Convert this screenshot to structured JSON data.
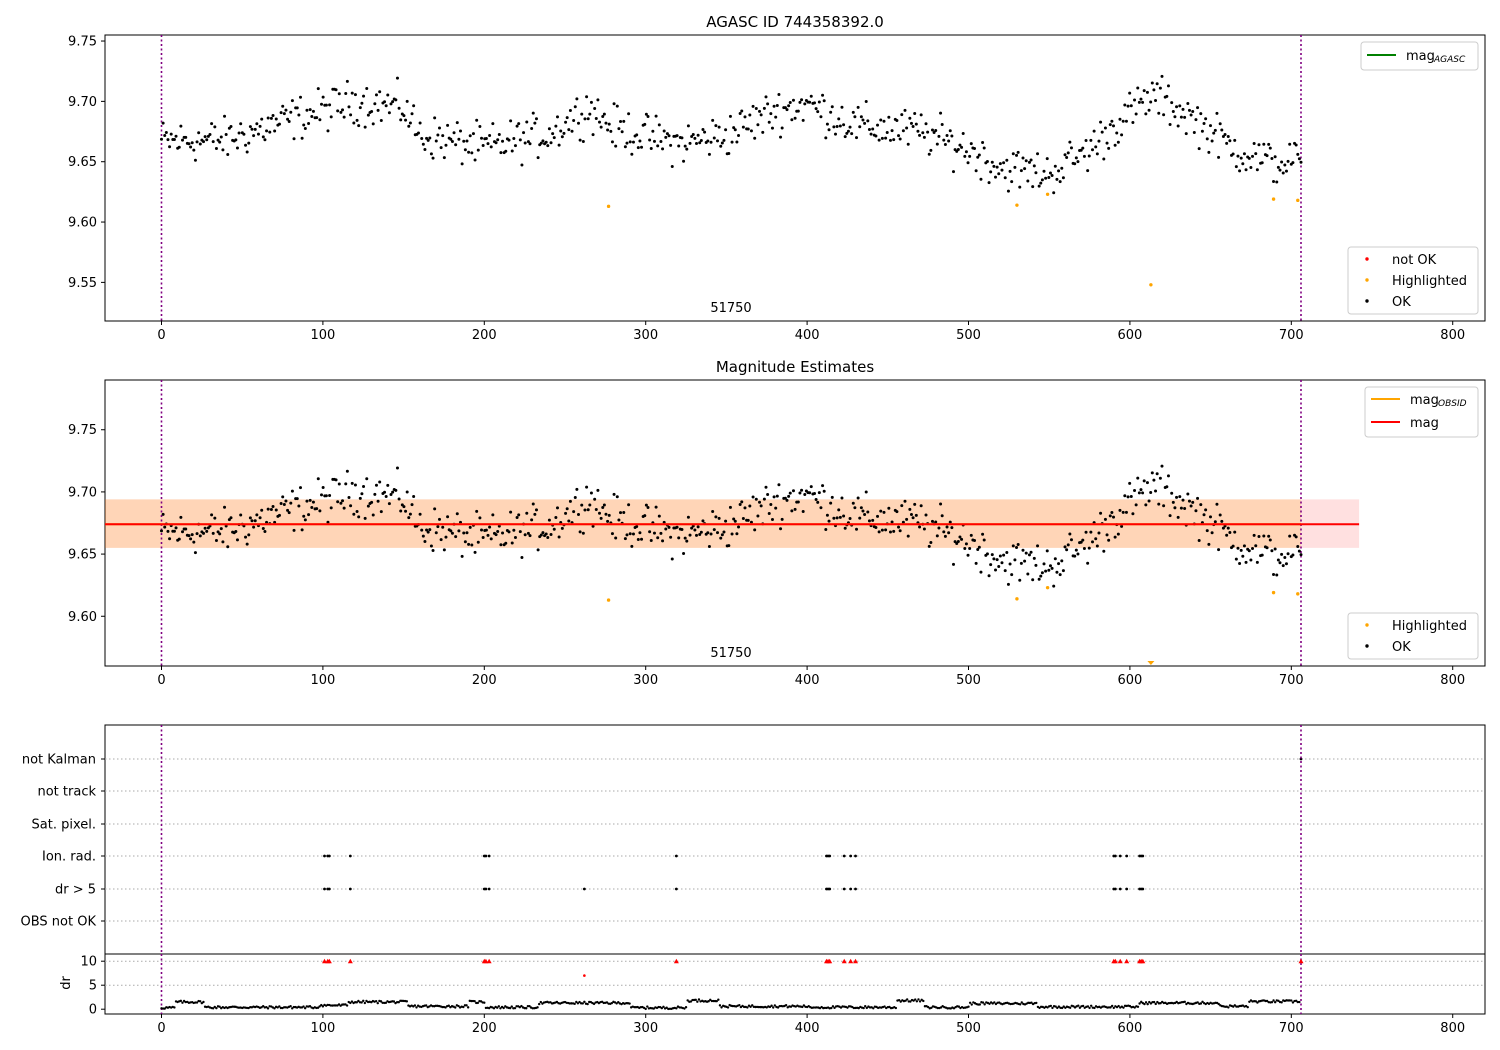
{
  "figure": {
    "panel1": {
      "title": "AGASC ID 744358392.0",
      "annotation": "51750"
    },
    "panel2": {
      "title": "Magnitude Estimates",
      "annotation": "51750"
    },
    "panel3": {
      "dr_label": "dr"
    }
  },
  "chart_data": [
    {
      "type": "scatter",
      "title": "AGASC ID 744358392.0",
      "xlim": [
        -35,
        820
      ],
      "ylim": [
        9.518,
        9.755
      ],
      "x_ticks": [
        "0",
        "100",
        "200",
        "300",
        "400",
        "500",
        "600",
        "700",
        "800"
      ],
      "y_ticks": [
        "9.55",
        "9.60",
        "9.65",
        "9.70",
        "9.75"
      ],
      "vlines": [
        0,
        706
      ],
      "lines": [
        {
          "name": "mag_AGASC",
          "color": "#008000"
        }
      ],
      "legend_lines": [
        {
          "name": "mag",
          "subscript": "AGASC",
          "color": "#008000"
        }
      ],
      "legend_points": [
        {
          "name": "not OK",
          "color": "#ff0000"
        },
        {
          "name": "Highlighted",
          "color": "#ffa500"
        },
        {
          "name": "OK",
          "color": "#000000"
        }
      ],
      "highlighted": [
        [
          277,
          9.613
        ],
        [
          530,
          9.614
        ],
        [
          549,
          9.623
        ],
        [
          613,
          9.548
        ],
        [
          689,
          9.619
        ],
        [
          704,
          9.618
        ]
      ],
      "ok_series": {
        "n": 706,
        "x_max": 706
      }
    },
    {
      "type": "scatter",
      "title": "Magnitude Estimates",
      "xlim": [
        -35,
        820
      ],
      "ylim": [
        9.56,
        9.79
      ],
      "x_ticks": [
        "0",
        "100",
        "200",
        "300",
        "400",
        "500",
        "600",
        "700",
        "800"
      ],
      "y_ticks": [
        "9.60",
        "9.65",
        "9.70",
        "9.75"
      ],
      "vlines": [
        0,
        706
      ],
      "mag": 9.674,
      "mag_obsid": 9.674,
      "band_red": [
        9.655,
        9.694
      ],
      "band_orange": [
        9.655,
        9.694
      ],
      "band_xmax": 742,
      "legend_lines": [
        {
          "name": "mag",
          "subscript": "OBSID",
          "color": "#ffa500"
        },
        {
          "name": "mag",
          "subscript": "",
          "color": "#ff0000"
        }
      ],
      "legend_points": [
        {
          "name": "Highlighted",
          "color": "#ffa500"
        },
        {
          "name": "OK",
          "color": "#000000"
        }
      ],
      "highlighted": [
        [
          277,
          9.613
        ],
        [
          530,
          9.614
        ],
        [
          549,
          9.623
        ],
        [
          689,
          9.619
        ],
        [
          704,
          9.618
        ]
      ],
      "clipped_marker": [
        613,
        9.56
      ]
    },
    {
      "type": "scatter",
      "title": "",
      "categories": [
        "not Kalman",
        "not track",
        "Sat. pixel.",
        "Ion. rad.",
        "dr > 5",
        "OBS not OK"
      ],
      "flag_points": {
        "Ion. rad.": [
          101,
          103,
          104,
          117,
          200,
          201,
          203,
          319,
          412,
          413,
          414,
          423,
          427,
          430,
          590,
          591,
          594,
          598,
          606,
          607,
          608
        ],
        "dr > 5": [
          101,
          103,
          104,
          117,
          200,
          201,
          203,
          262,
          319,
          412,
          413,
          414,
          423,
          427,
          430,
          590,
          591,
          594,
          598,
          606,
          607,
          608
        ],
        "not Kalman": [
          706
        ]
      },
      "vlines": [
        0,
        706
      ]
    },
    {
      "type": "scatter",
      "title": "",
      "ylabel": "dr",
      "xlim": [
        -35,
        820
      ],
      "ylim": [
        -1,
        11.5
      ],
      "x_ticks": [
        "0",
        "100",
        "200",
        "300",
        "400",
        "500",
        "600",
        "700",
        "800"
      ],
      "y_ticks": [
        "0",
        "5",
        "10"
      ],
      "vlines": [
        0,
        706
      ],
      "red_markers_at_10": [
        101,
        103,
        104,
        117,
        200,
        201,
        203,
        319,
        412,
        413,
        414,
        423,
        427,
        430,
        590,
        591,
        594,
        598,
        606,
        607,
        608,
        706
      ],
      "red_marker_other": [
        [
          262,
          7
        ]
      ],
      "dr_segments": [
        {
          "x": [
            0,
            8
          ],
          "level": 0.3
        },
        {
          "x": [
            9,
            26
          ],
          "level": 1.5
        },
        {
          "x": [
            27,
            97
          ],
          "level": 0.4
        },
        {
          "x": [
            98,
            115
          ],
          "level": 0.8
        },
        {
          "x": [
            116,
            152
          ],
          "level": 1.5
        },
        {
          "x": [
            153,
            190
          ],
          "level": 0.6
        },
        {
          "x": [
            191,
            200
          ],
          "level": 1.5
        },
        {
          "x": [
            201,
            233
          ],
          "level": 0.4
        },
        {
          "x": [
            234,
            290
          ],
          "level": 1.3
        },
        {
          "x": [
            291,
            325
          ],
          "level": 0.3
        },
        {
          "x": [
            326,
            345
          ],
          "level": 1.8
        },
        {
          "x": [
            346,
            400
          ],
          "level": 0.6
        },
        {
          "x": [
            401,
            455
          ],
          "level": 0.4
        },
        {
          "x": [
            456,
            472
          ],
          "level": 1.8
        },
        {
          "x": [
            473,
            500
          ],
          "level": 0.4
        },
        {
          "x": [
            501,
            542
          ],
          "level": 1.2
        },
        {
          "x": [
            543,
            605
          ],
          "level": 0.5
        },
        {
          "x": [
            606,
            655
          ],
          "level": 1.3
        },
        {
          "x": [
            656,
            673
          ],
          "level": 0.6
        },
        {
          "x": [
            674,
            705
          ],
          "level": 1.6
        }
      ]
    }
  ]
}
